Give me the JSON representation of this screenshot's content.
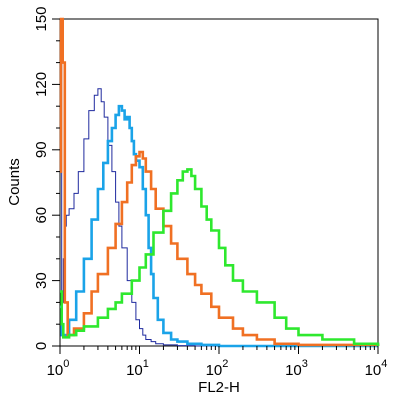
{
  "chart_data": {
    "type": "line",
    "title": "",
    "xlabel": "FL2-H",
    "ylabel": "Counts",
    "x_scale": "log",
    "xlim": [
      1,
      10000
    ],
    "ylim": [
      0,
      150
    ],
    "grid": false,
    "legend": "none",
    "x_ticks": [
      {
        "value": 1,
        "base": "10",
        "exp": "0"
      },
      {
        "value": 10,
        "base": "10",
        "exp": "1"
      },
      {
        "value": 100,
        "base": "10",
        "exp": "2"
      },
      {
        "value": 1000,
        "base": "10",
        "exp": "3"
      },
      {
        "value": 10000,
        "base": "10",
        "exp": "4"
      }
    ],
    "y_ticks": [
      {
        "value": 0,
        "label": "0"
      },
      {
        "value": 30,
        "label": "30"
      },
      {
        "value": 60,
        "label": "60"
      },
      {
        "value": 90,
        "label": "90"
      },
      {
        "value": 120,
        "label": "120"
      },
      {
        "value": 150,
        "label": "150"
      }
    ],
    "series": [
      {
        "color": "#1f2a9e",
        "stroke": "thin",
        "x": [
          1,
          1.05,
          1.1,
          1.15,
          1.2,
          1.3,
          1.5,
          1.7,
          2.0,
          2.3,
          2.7,
          3.0,
          3.3,
          3.6,
          4.0,
          4.5,
          5.0,
          5.5,
          6.0,
          7.0,
          8.0,
          9.0,
          10,
          11,
          12,
          14,
          16,
          20,
          30,
          50,
          10000
        ],
        "y": [
          150,
          20,
          40,
          55,
          60,
          63,
          70,
          80,
          95,
          108,
          115,
          118,
          112,
          105,
          92,
          80,
          66,
          55,
          45,
          30,
          20,
          12,
          8,
          5,
          3,
          2,
          1,
          0.5,
          0.2,
          0,
          0
        ]
      },
      {
        "color": "#1aa3e8",
        "stroke": "thick",
        "x": [
          1,
          1.05,
          1.3,
          1.6,
          2.0,
          2.5,
          3.0,
          3.5,
          4.0,
          4.5,
          5.0,
          5.5,
          6.0,
          6.5,
          7.0,
          7.5,
          8.0,
          8.5,
          9.0,
          10,
          11,
          12,
          13,
          14,
          15,
          17,
          20,
          25,
          30,
          40,
          60,
          100,
          10000
        ],
        "y": [
          18,
          5,
          12,
          25,
          40,
          58,
          72,
          84,
          94,
          100,
          106,
          110,
          108,
          104,
          105,
          100,
          94,
          88,
          85,
          82,
          72,
          60,
          45,
          33,
          22,
          12,
          6,
          3,
          2,
          1,
          0.5,
          0,
          0
        ]
      },
      {
        "color": "#f07023",
        "stroke": "thick",
        "x": [
          1,
          1.03,
          1.08,
          1.15,
          1.25,
          1.5,
          2.0,
          2.5,
          3.0,
          4.0,
          5.0,
          6.0,
          7.0,
          8.0,
          9.0,
          10,
          11,
          12,
          14,
          16,
          20,
          25,
          30,
          40,
          50,
          60,
          80,
          100,
          150,
          200,
          300,
          500,
          1000,
          10000
        ],
        "y": [
          80,
          150,
          130,
          20,
          5,
          8,
          15,
          25,
          33,
          45,
          56,
          66,
          75,
          83,
          87,
          89,
          86,
          80,
          72,
          63,
          55,
          47,
          40,
          33,
          28,
          24,
          18,
          13,
          8,
          5,
          3,
          1,
          0.5,
          0
        ]
      },
      {
        "color": "#2ee82e",
        "stroke": "thick",
        "x": [
          1,
          1.05,
          1.1,
          1.3,
          1.6,
          2.0,
          3.0,
          4.0,
          5.0,
          6.0,
          8.0,
          10,
          12,
          15,
          20,
          25,
          30,
          35,
          40,
          45,
          50,
          60,
          70,
          80,
          100,
          120,
          150,
          200,
          300,
          500,
          700,
          1000,
          2000,
          5000,
          10000
        ],
        "y": [
          25,
          10,
          4,
          5,
          7,
          9,
          13,
          17,
          20,
          24,
          30,
          36,
          42,
          52,
          62,
          70,
          76,
          80,
          81,
          78,
          72,
          64,
          58,
          53,
          45,
          37,
          30,
          25,
          20,
          13,
          8,
          5,
          3,
          1,
          0
        ]
      }
    ]
  }
}
